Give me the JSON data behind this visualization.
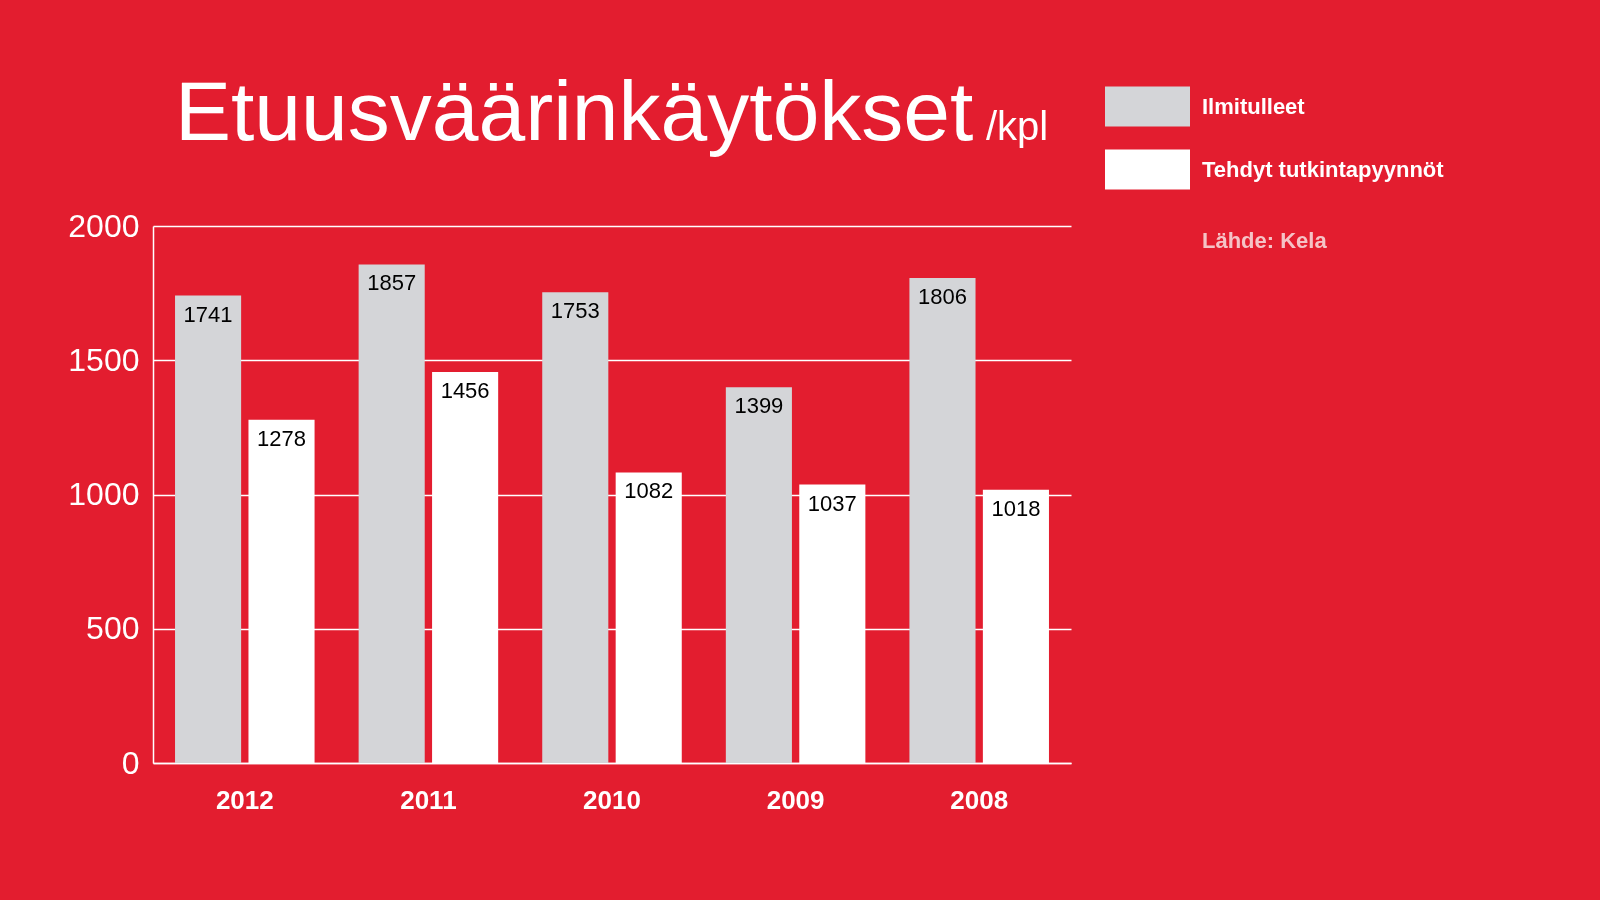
{
  "chart_data": {
    "type": "bar",
    "title": "Etuusväärinkäytökset",
    "subtitle": "/kpl",
    "categories": [
      "2012",
      "2011",
      "2010",
      "2009",
      "2008"
    ],
    "series": [
      {
        "name": "Ilmitulleet",
        "color": "#d4d5d8",
        "values": [
          1741,
          1857,
          1753,
          1399,
          1806
        ]
      },
      {
        "name": "Tehdyt tutkintapyynnöt",
        "color": "#ffffff",
        "values": [
          1278,
          1456,
          1082,
          1037,
          1018
        ]
      }
    ],
    "ylim": [
      0,
      2000
    ],
    "yticks": [
      0,
      500,
      1000,
      1500,
      2000
    ],
    "grid": "y",
    "legend": "top right",
    "data_labels": true,
    "annotations": [
      "Lähde: Kela"
    ]
  }
}
